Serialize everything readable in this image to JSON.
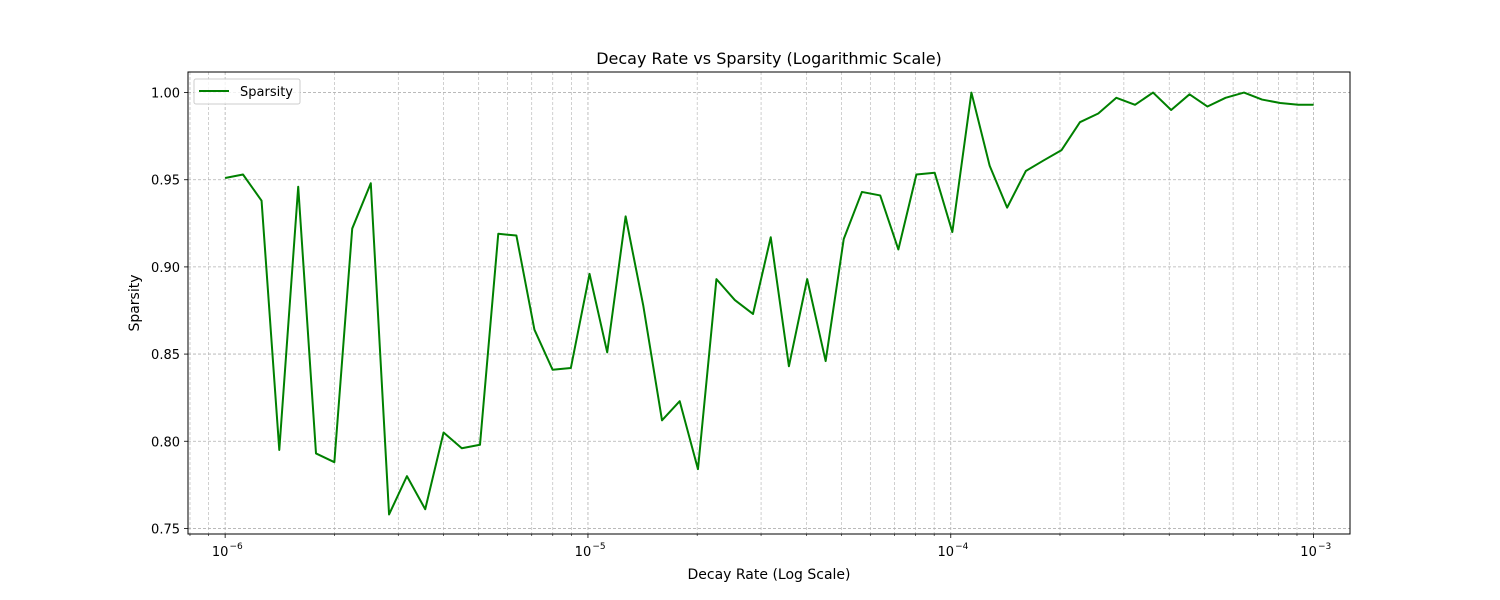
{
  "chart_data": {
    "type": "line",
    "title": "Decay Rate vs Sparsity (Logarithmic Scale)",
    "xlabel": "Decay Rate (Log Scale)",
    "ylabel": "Sparsity",
    "xscale": "log",
    "xlim": [
      7.9e-07,
      0.00126
    ],
    "ylim": [
      0.7468,
      1.0118
    ],
    "x_ticks": [
      1e-06,
      1e-05,
      0.0001,
      0.001
    ],
    "x_tick_labels": [
      {
        "base": "10",
        "exp": "−6"
      },
      {
        "base": "10",
        "exp": "−5"
      },
      {
        "base": "10",
        "exp": "−4"
      },
      {
        "base": "10",
        "exp": "−3"
      }
    ],
    "y_ticks": [
      0.75,
      0.8,
      0.85,
      0.9,
      0.95,
      1.0
    ],
    "y_tick_labels": [
      "0.75",
      "0.80",
      "0.85",
      "0.90",
      "0.95",
      "1.00"
    ],
    "grid": true,
    "legend_position": "upper-left",
    "series": [
      {
        "name": "Sparsity",
        "color": "#008000",
        "x": [
          1e-06,
          1.12e-06,
          1.26e-06,
          1.41e-06,
          1.59e-06,
          1.78e-06,
          2e-06,
          2.24e-06,
          2.52e-06,
          2.83e-06,
          3.17e-06,
          3.56e-06,
          4e-06,
          4.49e-06,
          5.04e-06,
          5.66e-06,
          6.35e-06,
          7.12e-06,
          7.99e-06,
          8.97e-06,
          1.01e-05,
          1.13e-05,
          1.27e-05,
          1.42e-05,
          1.6e-05,
          1.79e-05,
          2.01e-05,
          2.26e-05,
          2.54e-05,
          2.85e-05,
          3.19e-05,
          3.58e-05,
          4.02e-05,
          4.52e-05,
          5.07e-05,
          5.69e-05,
          6.39e-05,
          7.17e-05,
          8.04e-05,
          9.03e-05,
          0.000101,
          0.000114,
          0.000128,
          0.000143,
          0.000161,
          0.00018,
          0.000202,
          0.000227,
          0.000255,
          0.000286,
          0.000322,
          0.000361,
          0.000405,
          0.000455,
          0.00051,
          0.000572,
          0.000643,
          0.000721,
          0.000809,
          0.000908,
          0.001
        ],
        "y": [
          0.951,
          0.953,
          0.938,
          0.795,
          0.946,
          0.793,
          0.788,
          0.922,
          0.948,
          0.758,
          0.78,
          0.761,
          0.805,
          0.796,
          0.798,
          0.919,
          0.918,
          0.864,
          0.841,
          0.842,
          0.896,
          0.851,
          0.929,
          0.878,
          0.812,
          0.823,
          0.784,
          0.893,
          0.881,
          0.873,
          0.917,
          0.843,
          0.893,
          0.846,
          0.916,
          0.943,
          0.941,
          0.91,
          0.953,
          0.954,
          0.92,
          1.0,
          0.958,
          0.934,
          0.955,
          0.961,
          0.967,
          0.983,
          0.988,
          0.997,
          0.993,
          1.0,
          0.99,
          0.999,
          0.992,
          0.997,
          1.0,
          0.996,
          0.994,
          0.993,
          0.993
        ]
      }
    ]
  }
}
